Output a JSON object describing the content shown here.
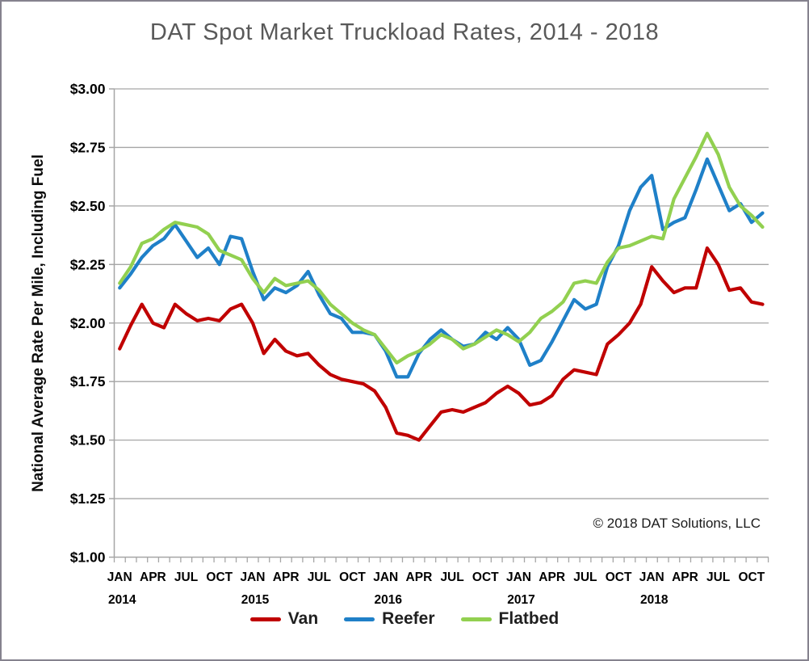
{
  "title": "DAT Spot Market Truckload Rates, 2014 - 2018",
  "copyright": "© 2018 DAT Solutions, LLC",
  "y_axis": {
    "title": "National Average Rate Per Mile, Including Fuel",
    "tick_labels": [
      "$3.00",
      "$2.75",
      "$2.50",
      "$2.25",
      "$2.00",
      "$1.75",
      "$1.50",
      "$1.25",
      "$1.00"
    ],
    "tick_values": [
      3.0,
      2.75,
      2.5,
      2.25,
      2.0,
      1.75,
      1.5,
      1.25,
      1.0
    ]
  },
  "x_axis": {
    "month_labels": {
      "01": "JAN",
      "04": "APR",
      "07": "JUL",
      "10": "OCT"
    },
    "years": [
      "2014",
      "2015",
      "2016",
      "2017",
      "2018"
    ]
  },
  "legend": [
    {
      "label": "Van",
      "color": "#c00000"
    },
    {
      "label": "Reefer",
      "color": "#1f80c8"
    },
    {
      "label": "Flatbed",
      "color": "#92d050"
    }
  ],
  "colors": {
    "grid": "#a6a6a6",
    "axis": "#a6a6a6",
    "tick_text": "#000000",
    "title_text": "#595959"
  },
  "chart_data": {
    "type": "line",
    "title": "DAT Spot Market Truckload Rates, 2014 - 2018",
    "xlabel": "",
    "ylabel": "National Average Rate Per Mile, Including Fuel",
    "ylim": [
      1.0,
      3.0
    ],
    "y_step": 0.25,
    "grid": true,
    "legend_position": "bottom",
    "categories": [
      "2014-01",
      "2014-02",
      "2014-03",
      "2014-04",
      "2014-05",
      "2014-06",
      "2014-07",
      "2014-08",
      "2014-09",
      "2014-10",
      "2014-11",
      "2014-12",
      "2015-01",
      "2015-02",
      "2015-03",
      "2015-04",
      "2015-05",
      "2015-06",
      "2015-07",
      "2015-08",
      "2015-09",
      "2015-10",
      "2015-11",
      "2015-12",
      "2016-01",
      "2016-02",
      "2016-03",
      "2016-04",
      "2016-05",
      "2016-06",
      "2016-07",
      "2016-08",
      "2016-09",
      "2016-10",
      "2016-11",
      "2016-12",
      "2017-01",
      "2017-02",
      "2017-03",
      "2017-04",
      "2017-05",
      "2017-06",
      "2017-07",
      "2017-08",
      "2017-09",
      "2017-10",
      "2017-11",
      "2017-12",
      "2018-01",
      "2018-02",
      "2018-03",
      "2018-04",
      "2018-05",
      "2018-06",
      "2018-07",
      "2018-08",
      "2018-09",
      "2018-10",
      "2018-11"
    ],
    "series": [
      {
        "name": "Van",
        "color": "#c00000",
        "values": [
          1.89,
          1.99,
          2.08,
          2.0,
          1.98,
          2.08,
          2.04,
          2.01,
          2.02,
          2.01,
          2.06,
          2.08,
          2.0,
          1.87,
          1.93,
          1.88,
          1.86,
          1.87,
          1.82,
          1.78,
          1.76,
          1.75,
          1.74,
          1.71,
          1.64,
          1.53,
          1.52,
          1.5,
          1.56,
          1.62,
          1.63,
          1.62,
          1.64,
          1.66,
          1.7,
          1.73,
          1.7,
          1.65,
          1.66,
          1.69,
          1.76,
          1.8,
          1.79,
          1.78,
          1.91,
          1.95,
          2.0,
          2.08,
          2.24,
          2.18,
          2.13,
          2.15,
          2.15,
          2.32,
          2.25,
          2.14,
          2.15,
          2.09,
          2.08
        ]
      },
      {
        "name": "Reefer",
        "color": "#1f80c8",
        "values": [
          2.15,
          2.21,
          2.28,
          2.33,
          2.36,
          2.42,
          2.35,
          2.28,
          2.32,
          2.25,
          2.37,
          2.36,
          2.22,
          2.1,
          2.15,
          2.13,
          2.16,
          2.22,
          2.12,
          2.04,
          2.02,
          1.96,
          1.96,
          1.95,
          1.88,
          1.77,
          1.77,
          1.87,
          1.93,
          1.97,
          1.93,
          1.9,
          1.91,
          1.96,
          1.93,
          1.98,
          1.93,
          1.82,
          1.84,
          1.92,
          2.01,
          2.1,
          2.06,
          2.08,
          2.24,
          2.33,
          2.48,
          2.58,
          2.63,
          2.4,
          2.43,
          2.45,
          2.57,
          2.7,
          2.59,
          2.48,
          2.51,
          2.43,
          2.47
        ]
      },
      {
        "name": "Flatbed",
        "color": "#92d050",
        "values": [
          2.17,
          2.24,
          2.34,
          2.36,
          2.4,
          2.43,
          2.42,
          2.41,
          2.38,
          2.31,
          2.29,
          2.27,
          2.19,
          2.13,
          2.19,
          2.16,
          2.17,
          2.18,
          2.14,
          2.08,
          2.04,
          2.0,
          1.97,
          1.95,
          1.89,
          1.83,
          1.86,
          1.88,
          1.91,
          1.95,
          1.93,
          1.89,
          1.91,
          1.94,
          1.97,
          1.95,
          1.92,
          1.96,
          2.02,
          2.05,
          2.09,
          2.17,
          2.18,
          2.17,
          2.26,
          2.32,
          2.33,
          2.35,
          2.37,
          2.36,
          2.53,
          2.62,
          2.71,
          2.81,
          2.72,
          2.58,
          2.5,
          2.46,
          2.41
        ]
      }
    ]
  }
}
